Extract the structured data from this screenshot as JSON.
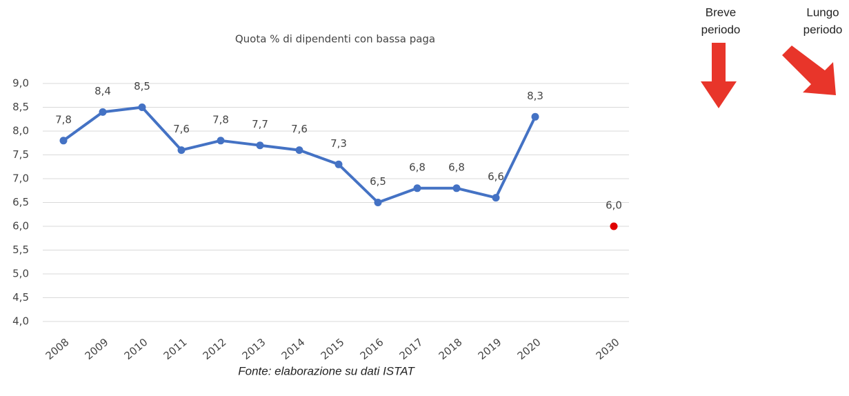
{
  "chart_data": {
    "type": "line",
    "title": "Quota % di dipendenti con bassa paga",
    "source": "Fonte: elaborazione su dati ISTAT",
    "categories": [
      "2008",
      "2009",
      "2010",
      "2011",
      "2012",
      "2013",
      "2014",
      "2015",
      "2016",
      "2017",
      "2018",
      "2019",
      "2020",
      null,
      "2030"
    ],
    "series": [
      {
        "color": "#4472c4",
        "values": [
          7.8,
          8.4,
          8.5,
          7.6,
          7.8,
          7.7,
          7.6,
          7.3,
          6.5,
          6.8,
          6.8,
          6.6,
          8.3,
          null,
          null
        ],
        "value_labels": [
          "7,8",
          "8,4",
          "8,5",
          "7,6",
          "7,8",
          "7,7",
          "7,6",
          "7,3",
          "6,5",
          "6,8",
          "6,8",
          "6,6",
          "8,3",
          null,
          null
        ]
      },
      {
        "color": "#e00000",
        "values": [
          null,
          null,
          null,
          null,
          null,
          null,
          null,
          null,
          null,
          null,
          null,
          null,
          null,
          null,
          6.0
        ],
        "value_labels": [
          null,
          null,
          null,
          null,
          null,
          null,
          null,
          null,
          null,
          null,
          null,
          null,
          null,
          null,
          "6,0"
        ]
      }
    ],
    "ylim": [
      4,
      9
    ],
    "yticks": [
      {
        "value": 4,
        "label": "4,0"
      },
      {
        "value": 4.5,
        "label": "4,5"
      },
      {
        "value": 5,
        "label": "5,0"
      },
      {
        "value": 5.5,
        "label": "5,5"
      },
      {
        "value": 6,
        "label": "6,0"
      },
      {
        "value": 6.5,
        "label": "6,5"
      },
      {
        "value": 7,
        "label": "7,0"
      },
      {
        "value": 7.5,
        "label": "7,5"
      },
      {
        "value": 8,
        "label": "8,0"
      },
      {
        "value": 8.5,
        "label": "8,5"
      },
      {
        "value": 9,
        "label": "9,0"
      }
    ],
    "grid": true,
    "annotations": [
      [
        "Breve",
        "periodo"
      ],
      [
        "Lungo",
        "periodo"
      ]
    ]
  }
}
